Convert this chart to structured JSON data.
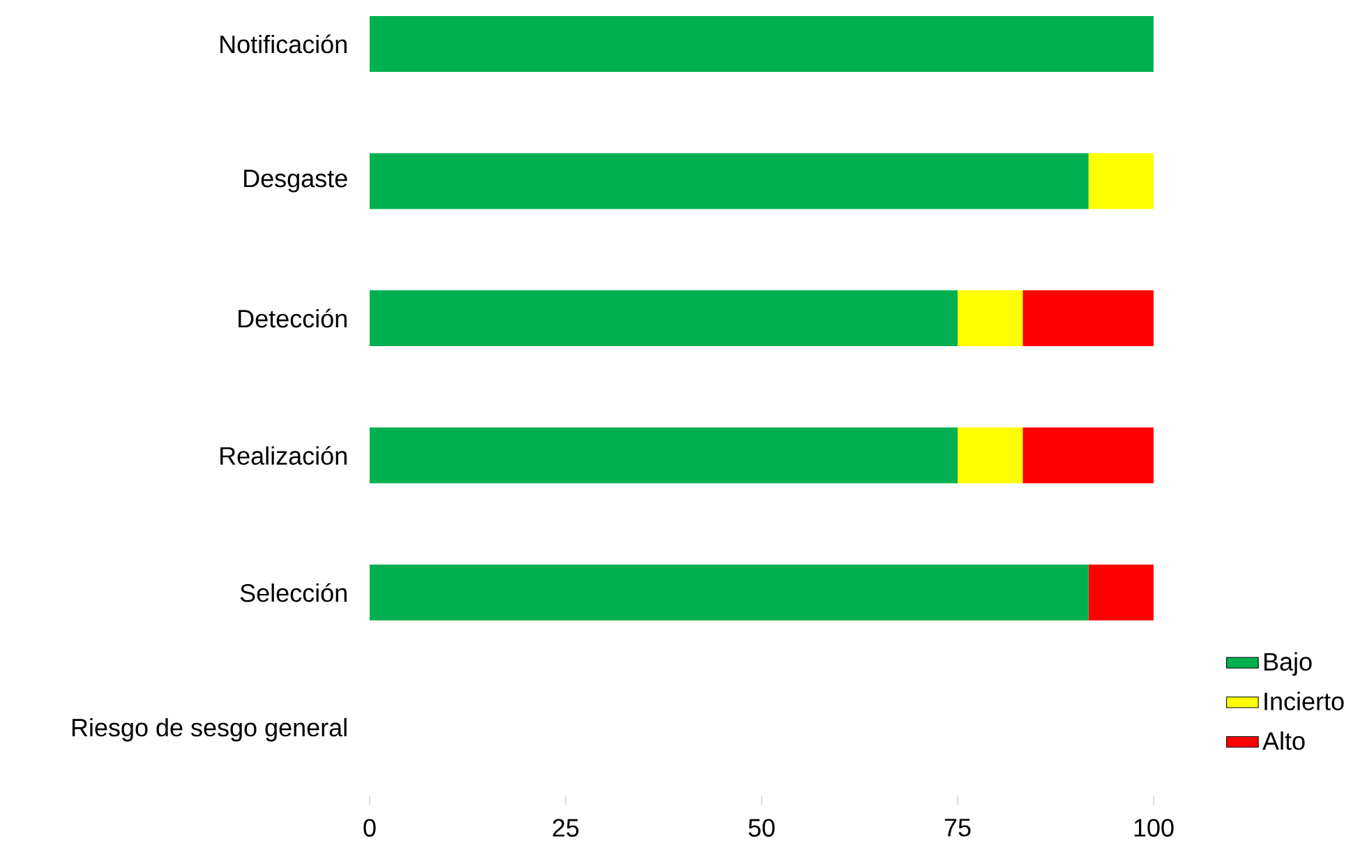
{
  "chart_data": {
    "type": "bar",
    "orientation": "horizontal",
    "stacked": true,
    "categories": [
      "Notificación",
      "Desgaste",
      "Detección",
      "Realización",
      "Selección",
      "Riesgo de sesgo general"
    ],
    "series": [
      {
        "name": "Bajo",
        "color": "#00b050",
        "values": [
          100,
          91.7,
          75,
          75,
          91.7,
          null
        ]
      },
      {
        "name": "Incierto",
        "color": "#ffff00",
        "values": [
          0,
          8.3,
          8.3,
          8.3,
          0,
          null
        ]
      },
      {
        "name": "Alto",
        "color": "#ff0000",
        "values": [
          0,
          0,
          16.7,
          16.7,
          8.3,
          null
        ]
      }
    ],
    "xlim": [
      0,
      100
    ],
    "xticks": [
      0,
      25,
      50,
      75,
      100
    ],
    "grid": false,
    "legend": "bottom right"
  }
}
